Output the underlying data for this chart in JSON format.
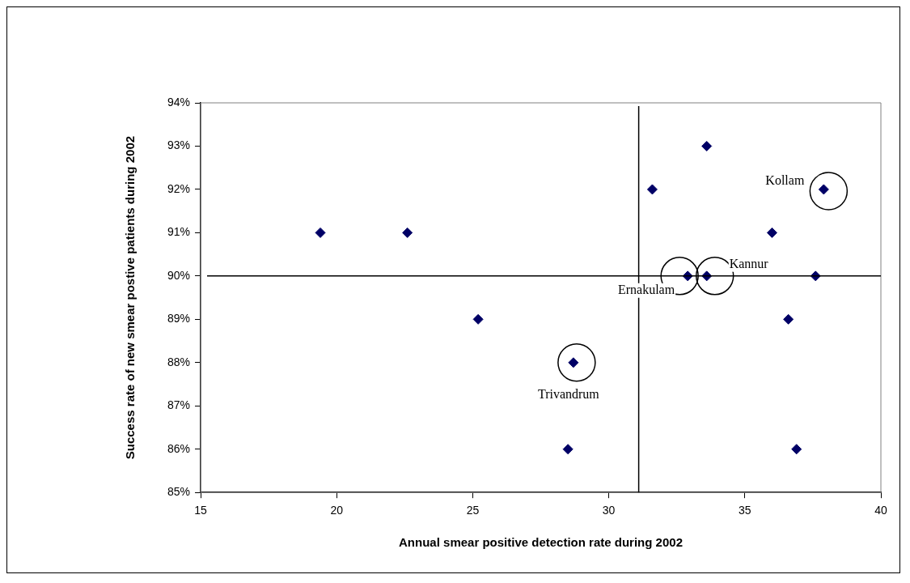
{
  "chart_data": {
    "type": "scatter",
    "xlabel": "Annual smear positive detection rate during 2002",
    "ylabel": "Success rate of new smear postive patients during 2002",
    "series": [
      {
        "color": "#000066",
        "x": [
          19.4,
          22.6,
          25.2,
          28.7,
          28.5,
          31.6,
          33.6,
          32.9,
          33.6,
          36.0,
          37.9,
          37.6,
          36.6,
          36.9
        ],
        "values": [
          91,
          91,
          89,
          88,
          86,
          92,
          93,
          90,
          90,
          91,
          92,
          90,
          89,
          86
        ]
      }
    ],
    "marker": "diamond",
    "xlim": [
      15,
      40
    ],
    "xticks": [
      15,
      20,
      25,
      30,
      35,
      40
    ],
    "ylim": [
      85,
      94
    ],
    "yticks": [
      {
        "value": 85,
        "label": "85%"
      },
      {
        "value": 86,
        "label": "86%"
      },
      {
        "value": 87,
        "label": "87%"
      },
      {
        "value": 88,
        "label": "88%"
      },
      {
        "value": 89,
        "label": "89%"
      },
      {
        "value": 90,
        "label": "90%"
      },
      {
        "value": 91,
        "label": "91%"
      },
      {
        "value": 92,
        "label": "92%"
      },
      {
        "value": 93,
        "label": "93%"
      },
      {
        "value": 94,
        "label": "94%"
      }
    ],
    "ref_lines": [
      {
        "axis": "x",
        "value": 31.1,
        "color": "#000000"
      },
      {
        "axis": "y",
        "value": 90,
        "color": "#000000"
      }
    ],
    "annotations": [
      {
        "text": "Kollam",
        "x": 37.9,
        "y": 92
      },
      {
        "text": "Kannur",
        "x": 33.6,
        "y": 90
      },
      {
        "text": "Ernakulam",
        "x": 32.9,
        "y": 90
      },
      {
        "text": "Trivandrum",
        "x": 28.7,
        "y": 88
      }
    ],
    "grid": false,
    "legend": false
  }
}
